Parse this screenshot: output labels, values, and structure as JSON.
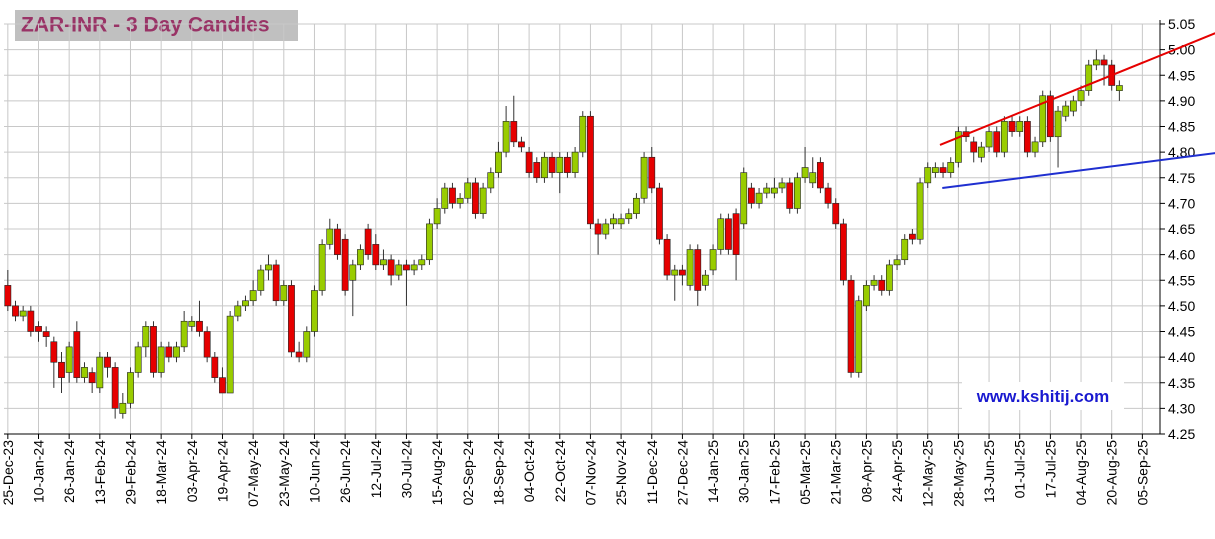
{
  "chart_data": {
    "type": "candlestick",
    "title": "ZAR-INR - 3 Day Candles",
    "watermark": "www.kshitij.com",
    "up_color": "#99cc00",
    "down_color": "#e60000",
    "grid": true,
    "open": [
      4.54,
      4.5,
      4.48,
      4.49,
      4.46,
      4.45,
      4.43,
      4.39,
      4.37,
      4.45,
      4.36,
      4.37,
      4.34,
      4.4,
      4.38,
      4.29,
      4.31,
      4.37,
      4.42,
      4.46,
      4.37,
      4.42,
      4.4,
      4.42,
      4.46,
      4.47,
      4.45,
      4.4,
      4.36,
      4.33,
      4.48,
      4.5,
      4.51,
      4.53,
      4.57,
      4.58,
      4.51,
      4.54,
      4.41,
      4.4,
      4.45,
      4.53,
      4.62,
      4.65,
      4.63,
      4.55,
      4.58,
      4.65,
      4.62,
      4.58,
      4.59,
      4.56,
      4.58,
      4.57,
      4.58,
      4.59,
      4.66,
      4.69,
      4.73,
      4.7,
      4.71,
      4.74,
      4.68,
      4.73,
      4.76,
      4.8,
      4.86,
      4.82,
      4.8,
      4.78,
      4.75,
      4.79,
      4.76,
      4.79,
      4.76,
      4.8,
      4.87,
      4.66,
      4.64,
      4.66,
      4.66,
      4.67,
      4.68,
      4.71,
      4.79,
      4.73,
      4.63,
      4.56,
      4.57,
      4.54,
      4.61,
      4.54,
      4.57,
      4.61,
      4.67,
      4.68,
      4.66,
      4.73,
      4.7,
      4.72,
      4.72,
      4.73,
      4.74,
      4.69,
      4.75,
      4.74,
      4.78,
      4.73,
      4.7,
      4.66,
      4.55,
      4.37,
      4.5,
      4.54,
      4.55,
      4.53,
      4.58,
      4.59,
      4.64,
      4.63,
      4.74,
      4.76,
      4.77,
      4.76,
      4.78,
      4.84,
      4.82,
      4.79,
      4.81,
      4.84,
      4.8,
      4.86,
      4.84,
      4.86,
      4.8,
      4.82,
      4.91,
      4.83,
      4.87,
      4.88,
      4.9,
      4.92,
      4.97,
      4.98,
      4.97,
      4.92
    ],
    "high": [
      4.57,
      4.51,
      4.5,
      4.5,
      4.47,
      4.46,
      4.44,
      4.41,
      4.43,
      4.47,
      4.39,
      4.38,
      4.41,
      4.41,
      4.39,
      4.33,
      4.38,
      4.43,
      4.47,
      4.47,
      4.43,
      4.43,
      4.43,
      4.49,
      4.48,
      4.51,
      4.46,
      4.41,
      4.38,
      4.49,
      4.51,
      4.52,
      4.55,
      4.58,
      4.6,
      4.59,
      4.55,
      4.55,
      4.43,
      4.46,
      4.54,
      4.63,
      4.67,
      4.66,
      4.64,
      4.59,
      4.62,
      4.66,
      4.64,
      4.61,
      4.6,
      4.59,
      4.59,
      4.59,
      4.6,
      4.67,
      4.71,
      4.74,
      4.74,
      4.72,
      4.75,
      4.75,
      4.74,
      4.77,
      4.82,
      4.89,
      4.91,
      4.83,
      4.81,
      4.79,
      4.8,
      4.8,
      4.8,
      4.8,
      4.81,
      4.88,
      4.88,
      4.67,
      4.67,
      4.68,
      4.68,
      4.69,
      4.72,
      4.8,
      4.81,
      4.74,
      4.64,
      4.58,
      4.58,
      4.62,
      4.62,
      4.57,
      4.62,
      4.68,
      4.68,
      4.69,
      4.77,
      4.74,
      4.73,
      4.74,
      4.75,
      4.75,
      4.75,
      4.76,
      4.81,
      4.79,
      4.79,
      4.74,
      4.71,
      4.67,
      4.56,
      4.52,
      4.55,
      4.56,
      4.56,
      4.59,
      4.6,
      4.64,
      4.65,
      4.75,
      4.78,
      4.78,
      4.78,
      4.79,
      4.85,
      4.85,
      4.83,
      4.82,
      4.85,
      4.85,
      4.87,
      4.87,
      4.87,
      4.87,
      4.83,
      4.92,
      4.92,
      4.89,
      4.9,
      4.91,
      4.93,
      4.98,
      5.0,
      4.99,
      4.98,
      4.94
    ],
    "low": [
      4.49,
      4.47,
      4.47,
      4.44,
      4.43,
      4.42,
      4.34,
      4.33,
      4.35,
      4.35,
      4.35,
      4.33,
      4.33,
      4.36,
      4.28,
      4.28,
      4.3,
      4.36,
      4.4,
      4.36,
      4.36,
      4.39,
      4.39,
      4.41,
      4.45,
      4.44,
      4.39,
      4.35,
      4.33,
      4.33,
      4.47,
      4.49,
      4.5,
      4.52,
      4.55,
      4.5,
      4.5,
      4.4,
      4.39,
      4.39,
      4.44,
      4.52,
      4.61,
      4.59,
      4.52,
      4.48,
      4.57,
      4.59,
      4.57,
      4.57,
      4.54,
      4.55,
      4.5,
      4.56,
      4.57,
      4.58,
      4.65,
      4.68,
      4.69,
      4.69,
      4.7,
      4.67,
      4.67,
      4.72,
      4.75,
      4.79,
      4.81,
      4.8,
      4.75,
      4.74,
      4.74,
      4.75,
      4.72,
      4.75,
      4.75,
      4.79,
      4.65,
      4.6,
      4.63,
      4.65,
      4.65,
      4.66,
      4.67,
      4.7,
      4.72,
      4.62,
      4.55,
      4.51,
      4.54,
      4.53,
      4.5,
      4.53,
      4.56,
      4.6,
      4.6,
      4.55,
      4.65,
      4.69,
      4.69,
      4.71,
      4.71,
      4.72,
      4.68,
      4.68,
      4.74,
      4.73,
      4.72,
      4.69,
      4.65,
      4.54,
      4.36,
      4.36,
      4.49,
      4.53,
      4.52,
      4.52,
      4.57,
      4.58,
      4.62,
      4.62,
      4.73,
      4.75,
      4.75,
      4.75,
      4.77,
      4.82,
      4.78,
      4.78,
      4.8,
      4.79,
      4.79,
      4.83,
      4.83,
      4.79,
      4.79,
      4.81,
      4.82,
      4.77,
      4.86,
      4.87,
      4.89,
      4.91,
      4.96,
      4.93,
      4.92,
      4.9
    ],
    "close": [
      4.5,
      4.48,
      4.49,
      4.45,
      4.45,
      4.44,
      4.39,
      4.36,
      4.42,
      4.36,
      4.38,
      4.35,
      4.4,
      4.38,
      4.3,
      4.31,
      4.37,
      4.42,
      4.46,
      4.37,
      4.42,
      4.4,
      4.42,
      4.47,
      4.47,
      4.45,
      4.4,
      4.36,
      4.33,
      4.48,
      4.5,
      4.51,
      4.53,
      4.57,
      4.58,
      4.51,
      4.54,
      4.41,
      4.4,
      4.45,
      4.53,
      4.62,
      4.65,
      4.6,
      4.53,
      4.58,
      4.61,
      4.6,
      4.58,
      4.59,
      4.56,
      4.58,
      4.57,
      4.58,
      4.59,
      4.66,
      4.69,
      4.73,
      4.7,
      4.71,
      4.74,
      4.68,
      4.73,
      4.76,
      4.8,
      4.86,
      4.82,
      4.81,
      4.76,
      4.75,
      4.79,
      4.76,
      4.79,
      4.76,
      4.8,
      4.87,
      4.66,
      4.64,
      4.66,
      4.67,
      4.67,
      4.68,
      4.71,
      4.79,
      4.73,
      4.63,
      4.56,
      4.57,
      4.56,
      4.61,
      4.53,
      4.56,
      4.61,
      4.67,
      4.61,
      4.6,
      4.76,
      4.7,
      4.72,
      4.73,
      4.73,
      4.74,
      4.69,
      4.75,
      4.77,
      4.76,
      4.73,
      4.7,
      4.66,
      4.55,
      4.37,
      4.51,
      4.54,
      4.55,
      4.53,
      4.58,
      4.59,
      4.63,
      4.63,
      4.74,
      4.77,
      4.77,
      4.76,
      4.78,
      4.84,
      4.83,
      4.8,
      4.81,
      4.84,
      4.8,
      4.86,
      4.84,
      4.86,
      4.8,
      4.82,
      4.91,
      4.83,
      4.88,
      4.89,
      4.9,
      4.92,
      4.97,
      4.98,
      4.97,
      4.93,
      4.93
    ],
    "trendlines": [
      {
        "color": "#e60000",
        "points": [
          [
            121.6,
            4.814
          ],
          [
            157.5,
            5.032
          ]
        ]
      },
      {
        "color": "#1f2fd0",
        "points": [
          [
            121.9,
            4.73
          ],
          [
            157.5,
            4.798
          ]
        ]
      }
    ],
    "xlim": [
      -0.5,
      150.3
    ],
    "xticks": [
      {
        "value": 0,
        "label": "25-Dec-23"
      },
      {
        "value": 4,
        "label": "10-Jan-24"
      },
      {
        "value": 8,
        "label": "26-Jan-24"
      },
      {
        "value": 12,
        "label": "13-Feb-24"
      },
      {
        "value": 16,
        "label": "29-Feb-24"
      },
      {
        "value": 20,
        "label": "18-Mar-24"
      },
      {
        "value": 24,
        "label": "03-Apr-24"
      },
      {
        "value": 28,
        "label": "19-Apr-24"
      },
      {
        "value": 32,
        "label": "07-May-24"
      },
      {
        "value": 36,
        "label": "23-May-24"
      },
      {
        "value": 40,
        "label": "10-Jun-24"
      },
      {
        "value": 44,
        "label": "26-Jun-24"
      },
      {
        "value": 48,
        "label": "12-Jul-24"
      },
      {
        "value": 52,
        "label": "30-Jul-24"
      },
      {
        "value": 56,
        "label": "15-Aug-24"
      },
      {
        "value": 60,
        "label": "02-Sep-24"
      },
      {
        "value": 64,
        "label": "18-Sep-24"
      },
      {
        "value": 68,
        "label": "04-Oct-24"
      },
      {
        "value": 72,
        "label": "22-Oct-24"
      },
      {
        "value": 76,
        "label": "07-Nov-24"
      },
      {
        "value": 80,
        "label": "25-Nov-24"
      },
      {
        "value": 84,
        "label": "11-Dec-24"
      },
      {
        "value": 88,
        "label": "27-Dec-24"
      },
      {
        "value": 92,
        "label": "14-Jan-25"
      },
      {
        "value": 96,
        "label": "30-Jan-25"
      },
      {
        "value": 100,
        "label": "17-Feb-25"
      },
      {
        "value": 104,
        "label": "05-Mar-25"
      },
      {
        "value": 108,
        "label": "21-Mar-25"
      },
      {
        "value": 112,
        "label": "08-Apr-25"
      },
      {
        "value": 116,
        "label": "24-Apr-25"
      },
      {
        "value": 120,
        "label": "12-May-25"
      },
      {
        "value": 124,
        "label": "28-May-25"
      },
      {
        "value": 128,
        "label": "13-Jun-25"
      },
      {
        "value": 132,
        "label": "01-Jul-25"
      },
      {
        "value": 136,
        "label": "17-Jul-25"
      },
      {
        "value": 140,
        "label": "04-Aug-25"
      },
      {
        "value": 144,
        "label": "20-Aug-25"
      },
      {
        "value": 148,
        "label": "05-Sep-25"
      }
    ],
    "ylim": [
      4.25,
      5.05
    ],
    "yticks": [
      4.25,
      {
        "value": 4.3,
        "label": "4.30"
      },
      4.35,
      {
        "value": 4.4,
        "label": "4.40"
      },
      4.45,
      {
        "value": 4.5,
        "label": "4.50"
      },
      4.55,
      {
        "value": 4.6,
        "label": "4.60"
      },
      4.65,
      {
        "value": 4.7,
        "label": "4.70"
      },
      4.75,
      {
        "value": 4.8,
        "label": "4.80"
      },
      4.85,
      {
        "value": 4.9,
        "label": "4.90"
      },
      4.95,
      {
        "value": 5.0,
        "label": "5.00"
      },
      5.05
    ]
  }
}
